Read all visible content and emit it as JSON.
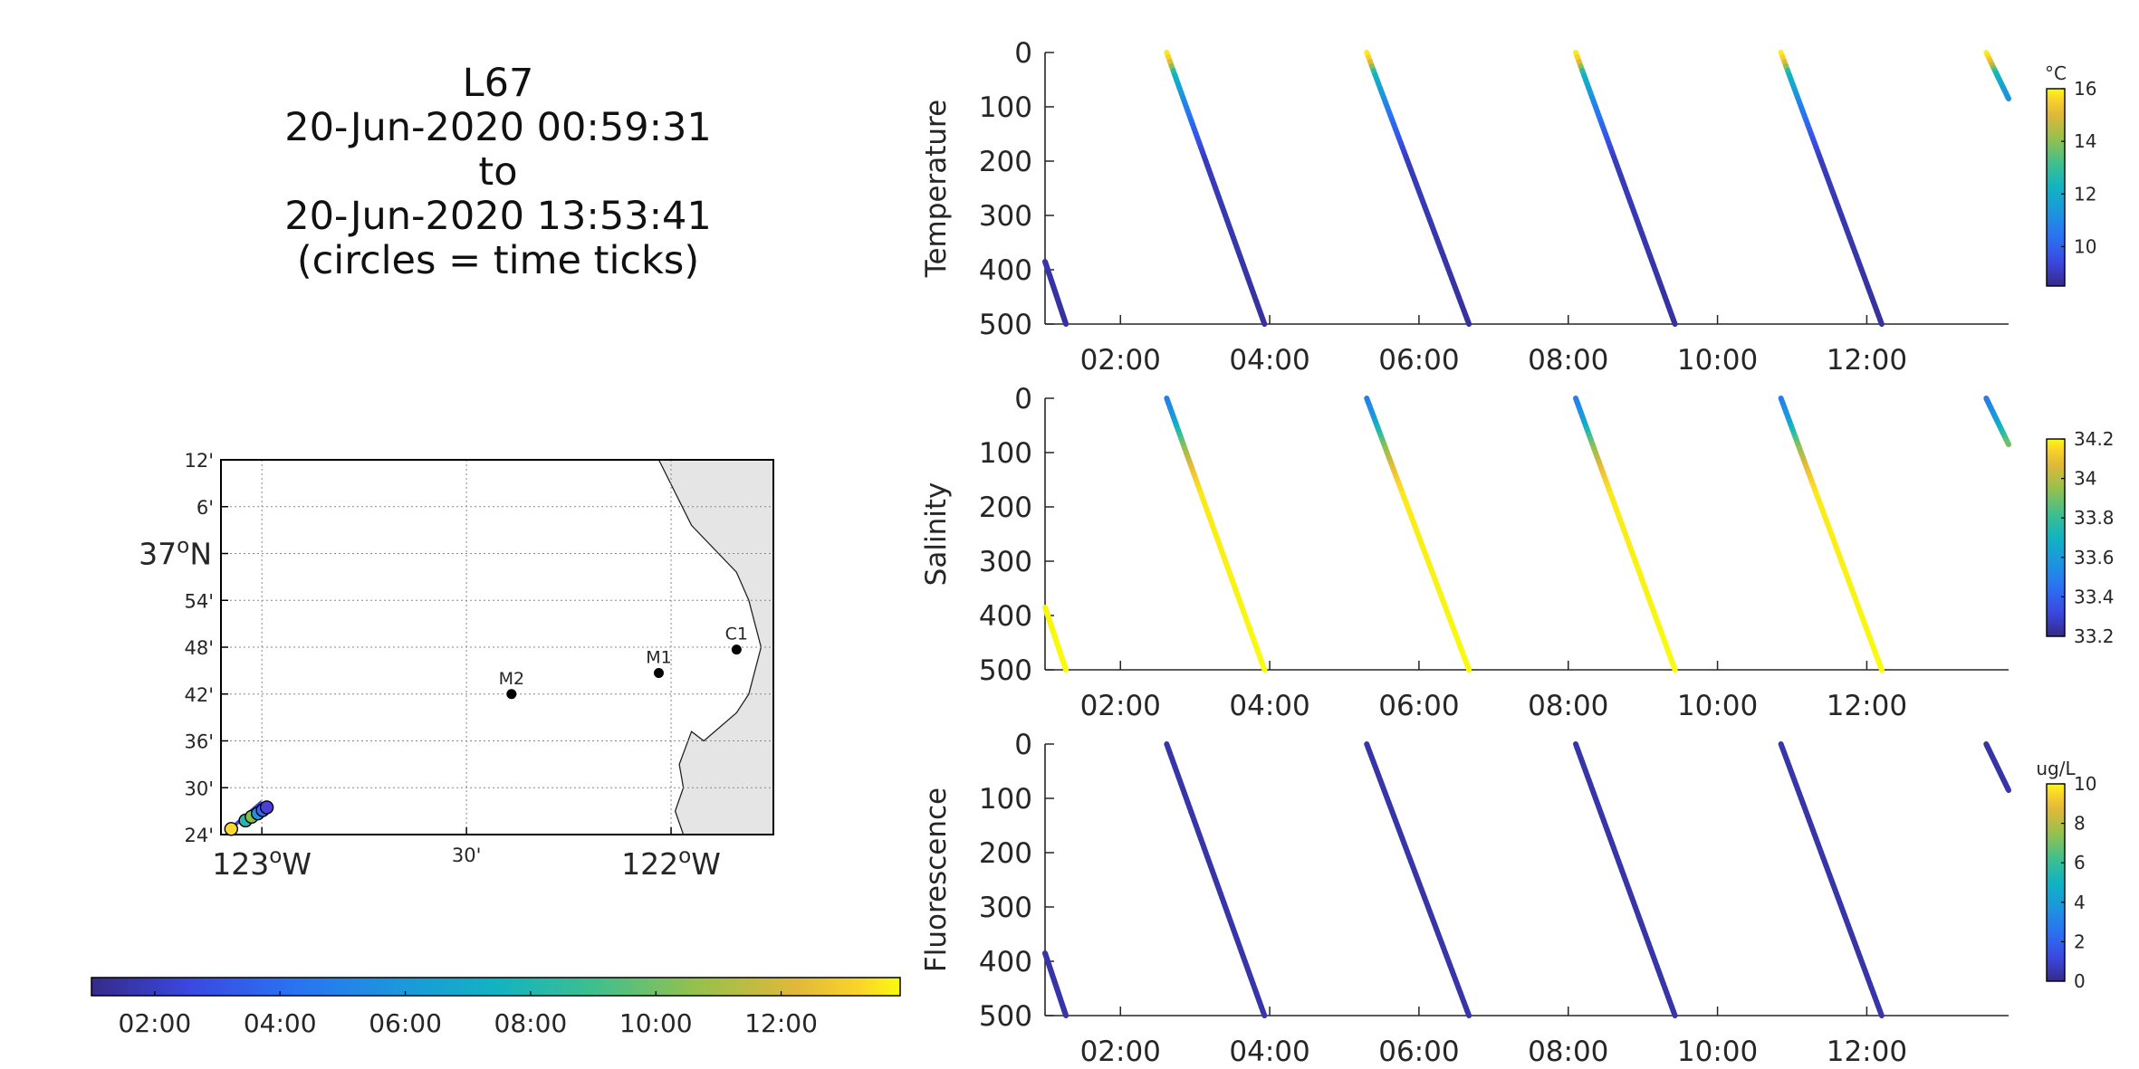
{
  "title": {
    "lines": [
      "L67",
      "20-Jun-2020 00:59:31",
      "to",
      "20-Jun-2020 13:53:41",
      "(circles = time ticks)"
    ]
  },
  "chart_data": [
    {
      "type": "map",
      "lon_ticks": [
        {
          "value": -123.0,
          "label": "123",
          "sup": "o",
          "suffix": "W",
          "major": true
        },
        {
          "value": -122.5,
          "label": "30'",
          "major": false
        },
        {
          "value": -122.0,
          "label": "122",
          "sup": "o",
          "suffix": "W",
          "major": true
        }
      ],
      "lat_ticks": [
        {
          "value": 37.2,
          "label": "12'",
          "major": false
        },
        {
          "value": 37.1,
          "label": "6'",
          "major": false
        },
        {
          "value": 37.0,
          "label": "37",
          "sup": "o",
          "suffix": "N",
          "major": true
        },
        {
          "value": 36.9,
          "label": "54'",
          "major": false
        },
        {
          "value": 36.8,
          "label": "48'",
          "major": false
        },
        {
          "value": 36.7,
          "label": "42'",
          "major": false
        },
        {
          "value": 36.6,
          "label": "36'",
          "major": false
        },
        {
          "value": 36.5,
          "label": "30'",
          "major": false
        },
        {
          "value": 36.4,
          "label": "24'",
          "major": false
        }
      ],
      "xlim": [
        -123.1,
        -121.75
      ],
      "ylim": [
        36.4,
        37.2
      ],
      "grid": true,
      "moorings": [
        {
          "name": "M2",
          "lon": -122.39,
          "lat": 36.7
        },
        {
          "name": "M1",
          "lon": -122.03,
          "lat": 36.745
        },
        {
          "name": "C1",
          "lon": -121.84,
          "lat": 36.795
        }
      ],
      "coastline": [
        [
          -122.08,
          37.2
        ],
        [
          -122.03,
          37.2
        ],
        [
          -121.95,
          37.06
        ],
        [
          -121.84,
          36.96
        ],
        [
          -121.81,
          36.9
        ],
        [
          -121.78,
          36.8
        ],
        [
          -121.81,
          36.7
        ],
        [
          -121.84,
          36.66
        ],
        [
          -121.92,
          36.6
        ],
        [
          -121.95,
          36.62
        ],
        [
          -121.98,
          36.55
        ],
        [
          -121.97,
          36.5
        ],
        [
          -121.99,
          36.45
        ],
        [
          -121.97,
          36.4
        ]
      ],
      "track": [
        [
          -123.08,
          36.41
        ],
        [
          -123.0,
          36.47
        ]
      ],
      "time_ticks": [
        {
          "lon": -123.075,
          "lat": 36.412,
          "color": "#f9d82f"
        },
        {
          "lon": -123.04,
          "lat": 36.43,
          "color": "#2bb3b0"
        },
        {
          "lon": -123.025,
          "lat": 36.438,
          "color": "#84c04a"
        },
        {
          "lon": -123.01,
          "lat": 36.445,
          "color": "#2591dc"
        },
        {
          "lon": -122.998,
          "lat": 36.452,
          "color": "#3866f5"
        },
        {
          "lon": -122.988,
          "lat": 36.458,
          "color": "#4a3fd9"
        }
      ],
      "colorbar": {
        "orientation": "horizontal",
        "ticks": [
          "02:00",
          "04:00",
          "06:00",
          "08:00",
          "10:00",
          "12:00"
        ],
        "tick_hours": [
          2,
          4,
          6,
          8,
          10,
          12
        ],
        "range_hours": [
          0.99,
          13.9
        ]
      }
    },
    {
      "type": "scatter",
      "ylabel": "Temperature",
      "ylim": [
        0,
        500
      ],
      "yticks": [
        "0",
        "100",
        "200",
        "300",
        "400",
        "500"
      ],
      "xticks": [
        "02:00",
        "04:00",
        "06:00",
        "08:00",
        "10:00",
        "12:00"
      ],
      "xlim_hours": [
        0.99,
        13.9
      ],
      "colorbar": {
        "label": "°C",
        "range": [
          8.5,
          16
        ],
        "ticks": [
          10,
          12,
          14,
          16
        ]
      },
      "color_profile": [
        [
          0,
          16
        ],
        [
          20,
          14.5
        ],
        [
          40,
          12
        ],
        [
          100,
          10.5
        ],
        [
          200,
          9
        ],
        [
          500,
          8.7
        ]
      ]
    },
    {
      "type": "scatter",
      "ylabel": "Salinity",
      "ylim": [
        0,
        500
      ],
      "yticks": [
        "0",
        "100",
        "200",
        "300",
        "400",
        "500"
      ],
      "xticks": [
        "02:00",
        "04:00",
        "06:00",
        "08:00",
        "10:00",
        "12:00"
      ],
      "xlim_hours": [
        0.99,
        13.9
      ],
      "colorbar": {
        "label": "",
        "range": [
          33.2,
          34.2
        ],
        "ticks": [
          33.2,
          33.4,
          33.6,
          33.8,
          34,
          34.2
        ]
      },
      "color_profile": [
        [
          0,
          33.45
        ],
        [
          40,
          33.55
        ],
        [
          80,
          33.8
        ],
        [
          130,
          34.0
        ],
        [
          180,
          34.15
        ],
        [
          500,
          34.2
        ]
      ]
    },
    {
      "type": "scatter",
      "ylabel": "Fluorescence",
      "ylim": [
        0,
        500
      ],
      "yticks": [
        "0",
        "100",
        "200",
        "300",
        "400",
        "500"
      ],
      "xticks": [
        "02:00",
        "04:00",
        "06:00",
        "08:00",
        "10:00",
        "12:00"
      ],
      "xlim_hours": [
        0.99,
        13.9
      ],
      "colorbar": {
        "label": "ug/L",
        "range": [
          0,
          10
        ],
        "ticks": [
          0,
          2,
          4,
          6,
          8,
          10
        ]
      },
      "color_profile": [
        [
          0,
          0.4
        ],
        [
          500,
          0.4
        ]
      ]
    }
  ],
  "dives": [
    {
      "start_hours": 0.99,
      "start_depth": 385,
      "end_hours": 1.27,
      "end_depth": 500
    },
    {
      "start_hours": 2.62,
      "start_depth": 0,
      "end_hours": 3.93,
      "end_depth": 500
    },
    {
      "start_hours": 5.3,
      "start_depth": 0,
      "end_hours": 6.67,
      "end_depth": 500
    },
    {
      "start_hours": 8.1,
      "start_depth": 0,
      "end_hours": 9.43,
      "end_depth": 500
    },
    {
      "start_hours": 10.85,
      "start_depth": 0,
      "end_hours": 12.2,
      "end_depth": 500
    },
    {
      "start_hours": 13.6,
      "start_depth": 0,
      "end_hours": 13.9,
      "end_depth": 85
    }
  ]
}
